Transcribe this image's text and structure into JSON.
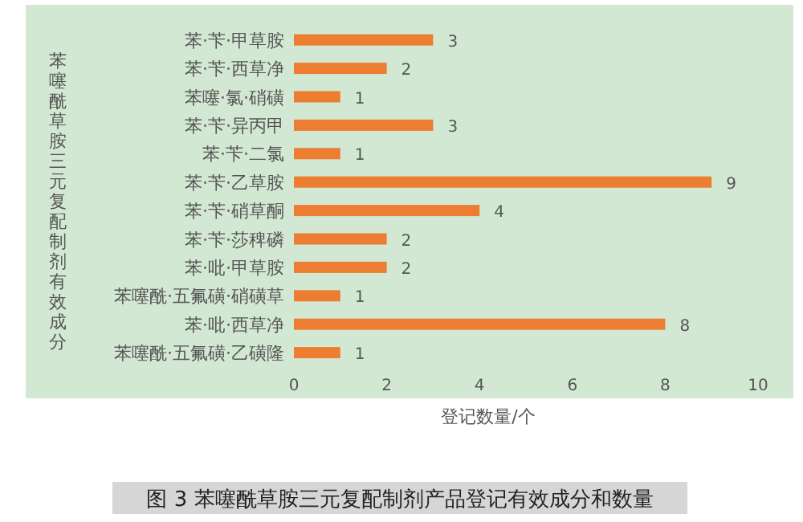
{
  "chart_data": {
    "type": "bar",
    "orientation": "horizontal",
    "title": "图 3  苯噻酰草胺三元复配制剂产品登记有效成分和数量",
    "xlabel": "登记数量/个",
    "ylabel": "苯噻酰草胺三元复配制剂有效成分",
    "categories": [
      "苯·苄·甲草胺",
      "苯·苄·西草净",
      "苯噻·氯·硝磺",
      "苯·苄·异丙甲",
      "苯·苄·二氯",
      "苯·苄·乙草胺",
      "苯·苄·硝草酮",
      "苯·苄·莎稗磷",
      "苯·吡·甲草胺",
      "苯噻酰·五氟磺·硝磺草",
      "苯·吡·西草净",
      "苯噻酰·五氟磺·乙磺隆"
    ],
    "values": [
      3,
      2,
      1,
      3,
      1,
      9,
      4,
      2,
      2,
      1,
      8,
      1
    ],
    "color": "#ed7d31",
    "xlim": [
      0,
      10
    ],
    "xticks": [
      0,
      2,
      4,
      6,
      8,
      10
    ],
    "data_labels": true
  }
}
